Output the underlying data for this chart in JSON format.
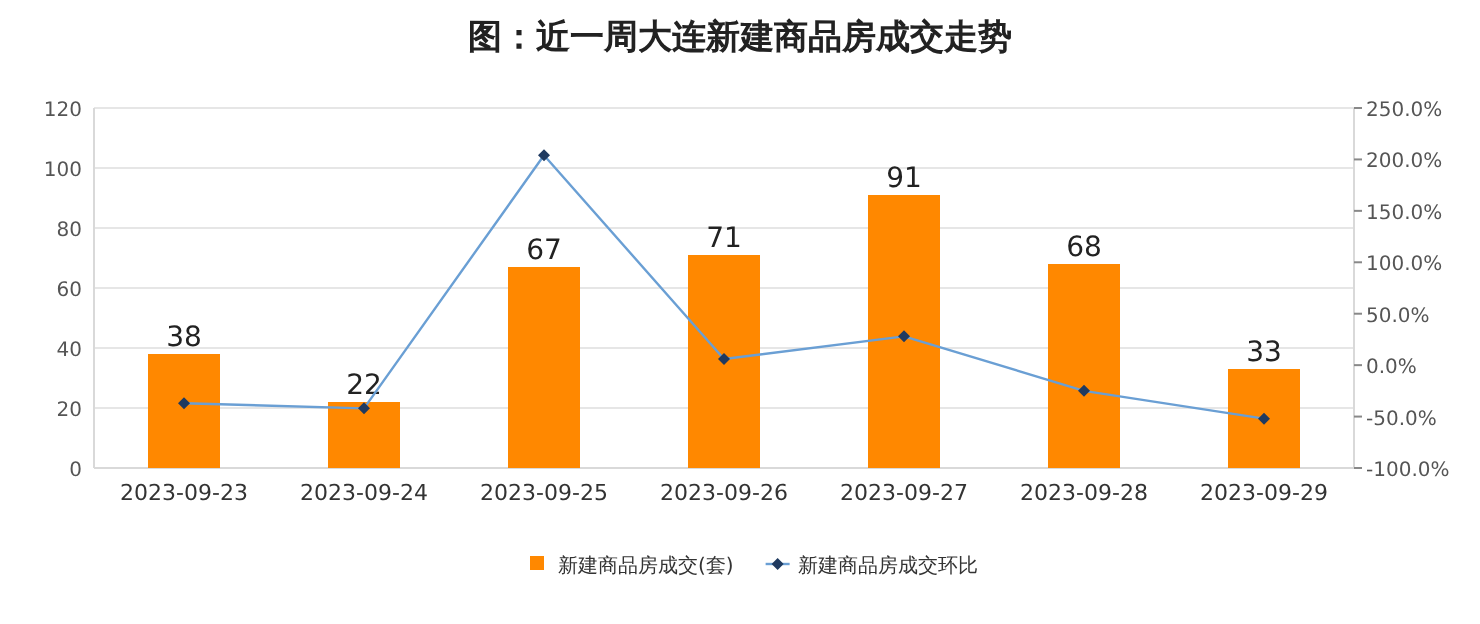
{
  "chart_data": {
    "type": "bar",
    "title": "图：近一周大连新建商品房成交走势",
    "categories": [
      "2023-09-23",
      "2023-09-24",
      "2023-09-25",
      "2023-09-26",
      "2023-09-27",
      "2023-09-28",
      "2023-09-29"
    ],
    "series": [
      {
        "name": "新建商品房成交(套)",
        "color": "#ff8800",
        "values": [
          38,
          22,
          67,
          71,
          91,
          68,
          33
        ],
        "value_labels": [
          "38",
          "22",
          "67",
          "71",
          "91",
          "68",
          "33"
        ]
      },
      {
        "name": "新建商品房成交环比",
        "type": "line",
        "axis": "y2",
        "color": "#6a9fd4",
        "marker": "diamond",
        "values": [
          -37,
          -42,
          204,
          6,
          28,
          -25,
          -52
        ]
      }
    ],
    "ylim": [
      0,
      120
    ],
    "yticks": [
      0,
      20,
      40,
      60,
      80,
      100,
      120
    ],
    "y2lim": [
      -100,
      250
    ],
    "y2ticks": [
      {
        "value": -100,
        "label": "-100.0%"
      },
      {
        "value": -50,
        "label": "-50.0%"
      },
      {
        "value": 0,
        "label": "0.0%"
      },
      {
        "value": 50,
        "label": "50.0%"
      },
      {
        "value": 100,
        "label": "100.0%"
      },
      {
        "value": 150,
        "label": "150.0%"
      },
      {
        "value": 200,
        "label": "200.0%"
      },
      {
        "value": 250,
        "label": "250.0%"
      }
    ],
    "grid": "y",
    "legend": "bottom"
  }
}
